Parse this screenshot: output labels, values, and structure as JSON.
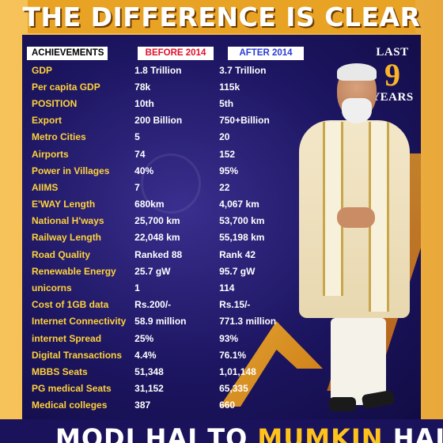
{
  "title": "THE DIFFERENCE IS CLEAR",
  "headers": {
    "achievements": "ACHIEVEMENTS",
    "before": "BEFORE 2014",
    "after": "AFTER 2014"
  },
  "badge": {
    "last": "LAST",
    "number": "9",
    "years": "YEARS"
  },
  "rows": [
    {
      "name": "GDP",
      "before": "1.8 Trillion",
      "after": "3.7 Trillion"
    },
    {
      "name": "Per capita GDP",
      "before": "78k",
      "after": "115k"
    },
    {
      "name": "POSITION",
      "before": "10th",
      "after": "5th"
    },
    {
      "name": "Export",
      "before": "200 Billion",
      "after": "750+Billion"
    },
    {
      "name": "Metro Cities",
      "before": "5",
      "after": "20"
    },
    {
      "name": "Airports",
      "before": "74",
      "after": "152"
    },
    {
      "name": "Power in Villages",
      "before": "40%",
      "after": "95%"
    },
    {
      "name": "AIIMS",
      "before": "7",
      "after": "22"
    },
    {
      "name": "E'WAY Length",
      "before": "680km",
      "after": "4,067 km"
    },
    {
      "name": "National H'ways",
      "before": "25,700 km",
      "after": "53,700 km"
    },
    {
      "name": "Railway Length",
      "before": "22,048 km",
      "after": "55,198 km"
    },
    {
      "name": "Road Quality",
      "before": "Ranked 88",
      "after": "Rank 42"
    },
    {
      "name": "Renewable Energy",
      "before": "25.7 gW",
      "after": "95.7 gW"
    },
    {
      "name": "unicorns",
      "before": "1",
      "after": "114"
    },
    {
      "name": "Cost of 1GB data",
      "before": "Rs.200/-",
      "after": "Rs.15/-"
    },
    {
      "name": "Internet Connectivity",
      "before": "58.9 million",
      "after": "771.3 million"
    },
    {
      "name": "internet Spread",
      "before": "25%",
      "after": "93%"
    },
    {
      "name": "Digital Transactions",
      "before": "4.4%",
      "after": "76.1%"
    },
    {
      "name": "MBBS Seats",
      "before": "51,348",
      "after": "1,01,148"
    },
    {
      "name": "PG medical Seats",
      "before": "31,152",
      "after": "65,335"
    },
    {
      "name": "Medical colleges",
      "before": "387",
      "after": "660"
    }
  ],
  "footer": {
    "part1": "MODI HAI TO ",
    "part2": "MUMKIN",
    "part3": " HAI"
  },
  "colors": {
    "gold": "#f8b52b",
    "label_yellow": "#ffd23a",
    "before_red": "#e0102a",
    "after_blue": "#2a3bd6",
    "panel_navy": "#1c1560"
  }
}
